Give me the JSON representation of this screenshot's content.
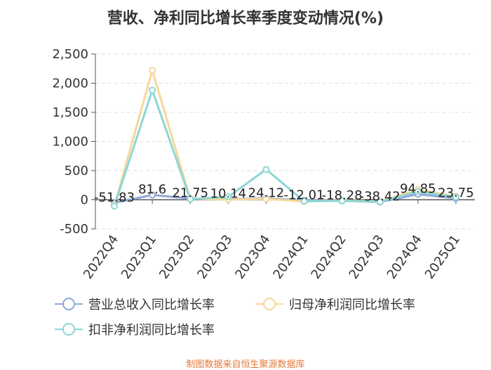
{
  "title": "营收、净利同比增长率季度变动情况(%)",
  "source": "制图数据来自恒生聚源数据库",
  "chart_data": {
    "type": "line",
    "categories": [
      "2022Q4",
      "2023Q1",
      "2023Q2",
      "2023Q3",
      "2023Q4",
      "2024Q1",
      "2024Q2",
      "2024Q3",
      "2024Q4",
      "2025Q1"
    ],
    "ylim": [
      -500,
      2500
    ],
    "yticks": [
      -500,
      0,
      500,
      1000,
      1500,
      2000,
      2500
    ],
    "ytick_labels": [
      "-500",
      "0",
      "500",
      "1,000",
      "1,500",
      "2,000",
      "2,500"
    ],
    "grid": true,
    "legend_position": "bottom",
    "series": [
      {
        "name": "营业总收入同比增长率",
        "color": "#8fa8d6",
        "values": [
          -51.83,
          81.6,
          21.75,
          10.14,
          24.12,
          -12.01,
          -18.28,
          -38.42,
          94.85,
          23.75
        ],
        "labels": [
          "-51.83",
          "81.6",
          "21.75",
          "10.14",
          "24.12",
          "-12.01",
          "-18.28",
          "-38.42",
          "94.85",
          "23.75"
        ]
      },
      {
        "name": "归母净利润同比增长率",
        "color": "#f7d79a",
        "values": [
          -100,
          2220,
          20,
          5,
          15,
          -30,
          -10,
          -30,
          175,
          60
        ]
      },
      {
        "name": "扣非净利润同比增长率",
        "color": "#8dd6d6",
        "values": [
          -110,
          1880,
          10,
          50,
          520,
          -25,
          -20,
          -35,
          140,
          45
        ]
      }
    ]
  }
}
